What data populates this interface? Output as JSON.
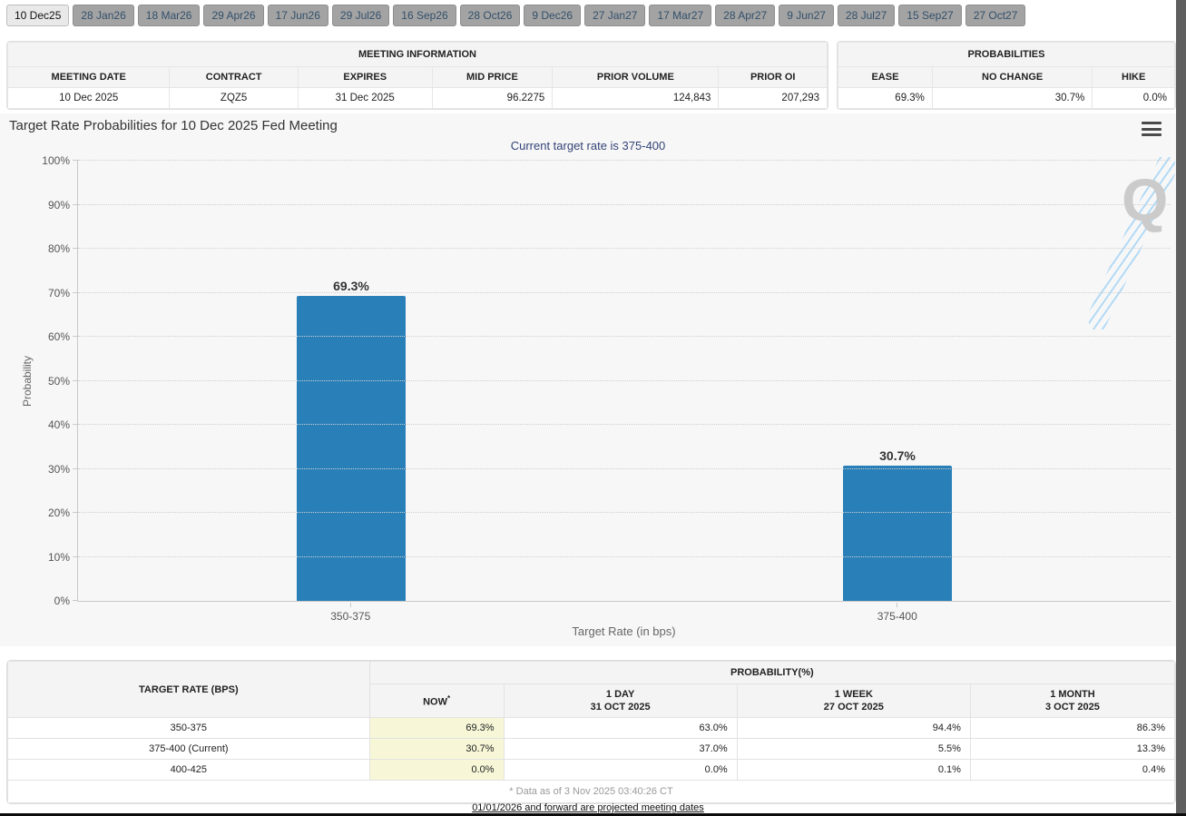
{
  "colors": {
    "bar": "#2980b9",
    "now_highlight": "#f7f7d8",
    "subtitle": "#334477",
    "tab_text": "#33506b"
  },
  "tabs": {
    "items": [
      {
        "label": "10 Dec25",
        "active": true
      },
      {
        "label": "28 Jan26",
        "active": false
      },
      {
        "label": "18 Mar26",
        "active": false
      },
      {
        "label": "29 Apr26",
        "active": false
      },
      {
        "label": "17 Jun26",
        "active": false
      },
      {
        "label": "29 Jul26",
        "active": false
      },
      {
        "label": "16 Sep26",
        "active": false
      },
      {
        "label": "28 Oct26",
        "active": false
      },
      {
        "label": "9 Dec26",
        "active": false
      },
      {
        "label": "27 Jan27",
        "active": false
      },
      {
        "label": "17 Mar27",
        "active": false
      },
      {
        "label": "28 Apr27",
        "active": false
      },
      {
        "label": "9 Jun27",
        "active": false
      },
      {
        "label": "28 Jul27",
        "active": false
      },
      {
        "label": "15 Sep27",
        "active": false
      },
      {
        "label": "27 Oct27",
        "active": false
      }
    ]
  },
  "meeting_info": {
    "title": "MEETING INFORMATION",
    "columns": [
      "MEETING DATE",
      "CONTRACT",
      "EXPIRES",
      "MID PRICE",
      "PRIOR VOLUME",
      "PRIOR OI"
    ],
    "values": [
      "10 Dec 2025",
      "ZQZ5",
      "31 Dec 2025",
      "96.2275",
      "124,843",
      "207,293"
    ]
  },
  "probabilities": {
    "title": "PROBABILITIES",
    "columns": [
      "EASE",
      "NO CHANGE",
      "HIKE"
    ],
    "values": [
      "69.3%",
      "30.7%",
      "0.0%"
    ]
  },
  "chart_data": {
    "type": "bar",
    "title": "Target Rate Probabilities for 10 Dec 2025 Fed Meeting",
    "subtitle": "Current target rate is 375-400",
    "categories": [
      "350-375",
      "375-400"
    ],
    "values": [
      69.3,
      30.7
    ],
    "value_labels": [
      "69.3%",
      "30.7%"
    ],
    "xlabel": "Target Rate (in bps)",
    "ylabel": "Probability",
    "ylim": [
      0,
      100
    ],
    "ytick_step": 10,
    "ytick_suffix": "%",
    "grid": "horizontal dotted",
    "legend": "none",
    "watermark": "Q"
  },
  "history_table": {
    "rate_header": "TARGET RATE (BPS)",
    "group_header": "PROBABILITY(%)",
    "now_header": "NOW",
    "now_header_suffix": "*",
    "period_headers": [
      {
        "line1": "1 DAY",
        "line2": "31 OCT 2025"
      },
      {
        "line1": "1 WEEK",
        "line2": "27 OCT 2025"
      },
      {
        "line1": "1 MONTH",
        "line2": "3 OCT 2025"
      }
    ],
    "rows": [
      {
        "rate": "350-375",
        "now": "69.3%",
        "day": "63.0%",
        "week": "94.4%",
        "month": "86.3%"
      },
      {
        "rate": "375-400 (Current)",
        "now": "30.7%",
        "day": "37.0%",
        "week": "5.5%",
        "month": "13.3%"
      },
      {
        "rate": "400-425",
        "now": "0.0%",
        "day": "0.0%",
        "week": "0.1%",
        "month": "0.4%"
      }
    ],
    "footnote": "* Data as of 3 Nov 2025 03:40:26 CT"
  },
  "footer": {
    "projected_note": "01/01/2026 and forward are projected meeting dates"
  }
}
